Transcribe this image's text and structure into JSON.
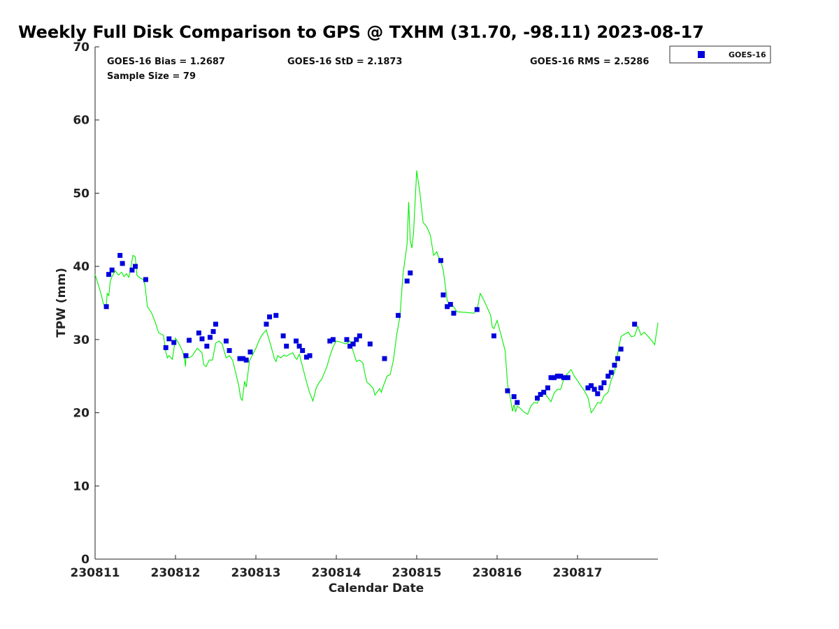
{
  "chart_data": {
    "type": "scatter",
    "title": "Weekly Full Disk Comparison to GPS @ TXHM (31.70, -98.11) 2023-08-17",
    "xlabel": "Calendar Date",
    "ylabel": "TPW (mm)",
    "xlim": [
      0,
      7
    ],
    "ylim": [
      0,
      70
    ],
    "x_ticks": [
      {
        "value": 0,
        "label": "230811"
      },
      {
        "value": 1,
        "label": "230812"
      },
      {
        "value": 2,
        "label": "230813"
      },
      {
        "value": 3,
        "label": "230814"
      },
      {
        "value": 4,
        "label": "230815"
      },
      {
        "value": 5,
        "label": "230816"
      },
      {
        "value": 6,
        "label": "230817"
      }
    ],
    "y_ticks": [
      0,
      10,
      20,
      30,
      40,
      50,
      60,
      70
    ],
    "stats": {
      "bias": "GOES-16 Bias = 1.2687",
      "std": "GOES-16 StD = 2.1873",
      "rms": "GOES-16 RMS = 2.5286",
      "sample": "Sample Size = 79"
    },
    "legend": {
      "position": "top-right outside",
      "entries": [
        "GOES-16"
      ]
    },
    "series": [
      {
        "name": "GOES-16",
        "color": "#0000dd",
        "marker": "square",
        "points": [
          [
            0.14,
            34.5
          ],
          [
            0.17,
            38.9
          ],
          [
            0.21,
            39.5
          ],
          [
            0.31,
            41.5
          ],
          [
            0.34,
            40.4
          ],
          [
            0.46,
            39.5
          ],
          [
            0.5,
            40
          ],
          [
            0.63,
            38.2
          ],
          [
            0.88,
            28.9
          ],
          [
            0.92,
            30.1
          ],
          [
            0.98,
            29.6
          ],
          [
            1.13,
            27.8
          ],
          [
            1.17,
            29.9
          ],
          [
            1.29,
            30.9
          ],
          [
            1.33,
            30.1
          ],
          [
            1.39,
            29.1
          ],
          [
            1.43,
            30.3
          ],
          [
            1.47,
            31.1
          ],
          [
            1.5,
            32.1
          ],
          [
            1.63,
            29.8
          ],
          [
            1.67,
            28.5
          ],
          [
            1.8,
            27.4
          ],
          [
            1.84,
            27.4
          ],
          [
            1.88,
            27.2
          ],
          [
            1.93,
            28.3
          ],
          [
            2.13,
            32.1
          ],
          [
            2.17,
            33.1
          ],
          [
            2.25,
            33.3
          ],
          [
            2.34,
            30.5
          ],
          [
            2.38,
            29.1
          ],
          [
            2.5,
            29.8
          ],
          [
            2.54,
            29.1
          ],
          [
            2.58,
            28.5
          ],
          [
            2.63,
            27.6
          ],
          [
            2.67,
            27.8
          ],
          [
            2.92,
            29.8
          ],
          [
            2.96,
            30
          ],
          [
            3.13,
            30
          ],
          [
            3.17,
            29.1
          ],
          [
            3.21,
            29.4
          ],
          [
            3.25,
            30
          ],
          [
            3.29,
            30.5
          ],
          [
            3.42,
            29.4
          ],
          [
            3.6,
            27.4
          ],
          [
            3.77,
            33.3
          ],
          [
            3.88,
            38
          ],
          [
            3.92,
            39.1
          ],
          [
            4.3,
            40.8
          ],
          [
            4.33,
            36.1
          ],
          [
            4.38,
            34.5
          ],
          [
            4.42,
            34.8
          ],
          [
            4.46,
            33.6
          ],
          [
            4.75,
            34.1
          ],
          [
            4.96,
            30.5
          ],
          [
            5.13,
            23
          ],
          [
            5.21,
            22.2
          ],
          [
            5.25,
            21.4
          ],
          [
            5.5,
            22
          ],
          [
            5.54,
            22.5
          ],
          [
            5.58,
            22.8
          ],
          [
            5.63,
            23.4
          ],
          [
            5.67,
            24.8
          ],
          [
            5.71,
            24.8
          ],
          [
            5.75,
            25
          ],
          [
            5.79,
            25
          ],
          [
            5.83,
            24.8
          ],
          [
            5.88,
            24.8
          ],
          [
            6.13,
            23.4
          ],
          [
            6.17,
            23.7
          ],
          [
            6.21,
            23.2
          ],
          [
            6.25,
            22.6
          ],
          [
            6.29,
            23.4
          ],
          [
            6.33,
            24.1
          ],
          [
            6.38,
            25
          ],
          [
            6.42,
            25.5
          ],
          [
            6.46,
            26.5
          ],
          [
            6.5,
            27.4
          ],
          [
            6.54,
            28.7
          ],
          [
            6.71,
            32.1
          ]
        ]
      },
      {
        "name": "GPS",
        "color": "#00ee00",
        "line": "solid",
        "points": [
          [
            0,
            38.9
          ],
          [
            0.04,
            37.5
          ],
          [
            0.08,
            36
          ],
          [
            0.1,
            35
          ],
          [
            0.12,
            34.5
          ],
          [
            0.14,
            34.8
          ],
          [
            0.15,
            36.3
          ],
          [
            0.17,
            36
          ],
          [
            0.19,
            38
          ],
          [
            0.21,
            38.6
          ],
          [
            0.25,
            39.4
          ],
          [
            0.29,
            38.8
          ],
          [
            0.33,
            39.2
          ],
          [
            0.36,
            38.6
          ],
          [
            0.39,
            39
          ],
          [
            0.42,
            38.5
          ],
          [
            0.44,
            39.5
          ],
          [
            0.47,
            41.5
          ],
          [
            0.5,
            41.3
          ],
          [
            0.52,
            38.8
          ],
          [
            0.56,
            38.4
          ],
          [
            0.6,
            38.2
          ],
          [
            0.62,
            37.5
          ],
          [
            0.65,
            34.5
          ],
          [
            0.7,
            33.7
          ],
          [
            0.75,
            32.3
          ],
          [
            0.79,
            30.9
          ],
          [
            0.85,
            30.6
          ],
          [
            0.88,
            28.3
          ],
          [
            0.9,
            27.5
          ],
          [
            0.92,
            27.8
          ],
          [
            0.96,
            27.3
          ],
          [
            0.98,
            28.7
          ],
          [
            1.0,
            30.2
          ],
          [
            1.04,
            29.5
          ],
          [
            1.08,
            28.6
          ],
          [
            1.11,
            27.6
          ],
          [
            1.125,
            26.3
          ],
          [
            1.13,
            27.8
          ],
          [
            1.17,
            27.5
          ],
          [
            1.21,
            27.8
          ],
          [
            1.27,
            28.8
          ],
          [
            1.33,
            28.2
          ],
          [
            1.35,
            26.6
          ],
          [
            1.38,
            26.3
          ],
          [
            1.42,
            27.2
          ],
          [
            1.46,
            27.2
          ],
          [
            1.5,
            29.5
          ],
          [
            1.54,
            29.8
          ],
          [
            1.58,
            29.4
          ],
          [
            1.63,
            27.5
          ],
          [
            1.67,
            27.8
          ],
          [
            1.71,
            27.2
          ],
          [
            1.75,
            25.4
          ],
          [
            1.79,
            23.5
          ],
          [
            1.81,
            22
          ],
          [
            1.83,
            21.7
          ],
          [
            1.86,
            24.3
          ],
          [
            1.88,
            23.5
          ],
          [
            1.92,
            27.1
          ],
          [
            2.0,
            28.8
          ],
          [
            2.04,
            29.9
          ],
          [
            2.08,
            30.7
          ],
          [
            2.13,
            31.3
          ],
          [
            2.15,
            30.5
          ],
          [
            2.19,
            29
          ],
          [
            2.23,
            27.4
          ],
          [
            2.25,
            27
          ],
          [
            2.27,
            27.8
          ],
          [
            2.31,
            27.5
          ],
          [
            2.35,
            27.9
          ],
          [
            2.38,
            27.7
          ],
          [
            2.42,
            28
          ],
          [
            2.46,
            28.2
          ],
          [
            2.49,
            27.5
          ],
          [
            2.51,
            27.3
          ],
          [
            2.54,
            28
          ],
          [
            2.58,
            26.3
          ],
          [
            2.63,
            24.2
          ],
          [
            2.67,
            22.7
          ],
          [
            2.71,
            21.6
          ],
          [
            2.75,
            23.4
          ],
          [
            2.79,
            24.2
          ],
          [
            2.82,
            24.6
          ],
          [
            2.88,
            26.2
          ],
          [
            2.92,
            27.7
          ],
          [
            2.96,
            29
          ],
          [
            3.0,
            29.8
          ],
          [
            3.04,
            29.7
          ],
          [
            3.12,
            29.4
          ],
          [
            3.17,
            29.8
          ],
          [
            3.21,
            28.4
          ],
          [
            3.25,
            27
          ],
          [
            3.29,
            27.2
          ],
          [
            3.33,
            26.8
          ],
          [
            3.35,
            25.6
          ],
          [
            3.38,
            24.2
          ],
          [
            3.42,
            23.8
          ],
          [
            3.46,
            23.3
          ],
          [
            3.48,
            22.4
          ],
          [
            3.5,
            22.7
          ],
          [
            3.54,
            23.3
          ],
          [
            3.56,
            22.8
          ],
          [
            3.58,
            23.5
          ],
          [
            3.63,
            25
          ],
          [
            3.67,
            25.2
          ],
          [
            3.71,
            27.2
          ],
          [
            3.75,
            30.6
          ],
          [
            3.79,
            33.1
          ],
          [
            3.83,
            39
          ],
          [
            3.88,
            43
          ],
          [
            3.9,
            48.8
          ],
          [
            3.92,
            43.5
          ],
          [
            3.94,
            42.5
          ],
          [
            3.96,
            44.5
          ],
          [
            4.0,
            53.1
          ],
          [
            4.04,
            50
          ],
          [
            4.08,
            46
          ],
          [
            4.12,
            45.5
          ],
          [
            4.17,
            44.3
          ],
          [
            4.21,
            41.5
          ],
          [
            4.25,
            42
          ],
          [
            4.27,
            41.3
          ],
          [
            4.29,
            41
          ],
          [
            4.33,
            39.5
          ],
          [
            4.38,
            35.3
          ],
          [
            4.42,
            34.8
          ],
          [
            4.46,
            34.5
          ],
          [
            4.5,
            33.8
          ],
          [
            4.62,
            33.7
          ],
          [
            4.71,
            33.6
          ],
          [
            4.75,
            34.1
          ],
          [
            4.79,
            36.3
          ],
          [
            4.83,
            35.5
          ],
          [
            4.88,
            34.3
          ],
          [
            4.92,
            33.3
          ],
          [
            4.94,
            31.7
          ],
          [
            4.96,
            31.5
          ],
          [
            5.0,
            32.6
          ],
          [
            5.04,
            31
          ],
          [
            5.08,
            29.3
          ],
          [
            5.1,
            28.5
          ],
          [
            5.13,
            23.8
          ],
          [
            5.17,
            21.7
          ],
          [
            5.19,
            20.2
          ],
          [
            5.21,
            21.1
          ],
          [
            5.23,
            20.1
          ],
          [
            5.25,
            20.9
          ],
          [
            5.29,
            20.6
          ],
          [
            5.33,
            20.1
          ],
          [
            5.38,
            19.8
          ],
          [
            5.42,
            20.9
          ],
          [
            5.46,
            21.4
          ],
          [
            5.5,
            21.3
          ],
          [
            5.54,
            22.5
          ],
          [
            5.58,
            22.8
          ],
          [
            5.63,
            22.1
          ],
          [
            5.67,
            21.5
          ],
          [
            5.71,
            22.7
          ],
          [
            5.75,
            23.2
          ],
          [
            5.79,
            23.2
          ],
          [
            5.83,
            24.7
          ],
          [
            5.88,
            25.4
          ],
          [
            5.92,
            25.9
          ],
          [
            5.96,
            25
          ],
          [
            6.0,
            24.4
          ],
          [
            6.04,
            23.7
          ],
          [
            6.08,
            23.1
          ],
          [
            6.13,
            22.1
          ],
          [
            6.17,
            20
          ],
          [
            6.21,
            20.6
          ],
          [
            6.25,
            21.4
          ],
          [
            6.29,
            21.3
          ],
          [
            6.33,
            22.3
          ],
          [
            6.38,
            22.8
          ],
          [
            6.42,
            24.5
          ],
          [
            6.46,
            25.5
          ],
          [
            6.5,
            28.1
          ],
          [
            6.54,
            30.4
          ],
          [
            6.58,
            30.7
          ],
          [
            6.63,
            31
          ],
          [
            6.67,
            30.4
          ],
          [
            6.71,
            30.5
          ],
          [
            6.75,
            31.8
          ],
          [
            6.79,
            30.6
          ],
          [
            6.83,
            31
          ],
          [
            6.88,
            30.4
          ],
          [
            6.92,
            29.9
          ],
          [
            6.96,
            29.3
          ],
          [
            7.0,
            32.3
          ]
        ]
      }
    ]
  }
}
